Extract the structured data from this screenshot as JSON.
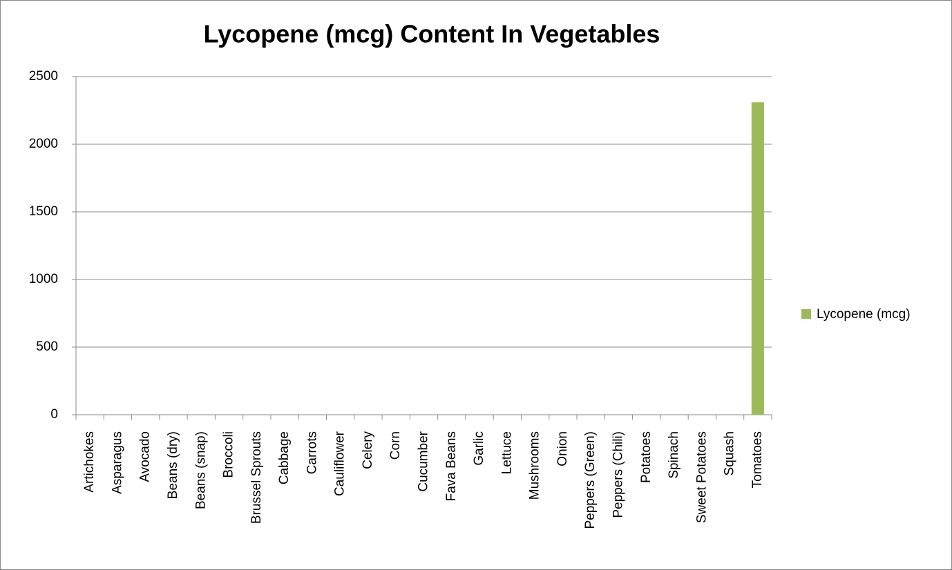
{
  "chart_data": {
    "type": "bar",
    "title": "Lycopene (mcg) Content In Vegetables",
    "categories": [
      "Artichokes",
      "Asparagus",
      "Avocado",
      "Beans (dry)",
      "Beans (snap)",
      "Broccoli",
      "Brussel Sprouts",
      "Cabbage",
      "Carrots",
      "Cauliflower",
      "Celery",
      "Corn",
      "Cucumber",
      "Fava Beans",
      "Garlic",
      "Lettuce",
      "Mushrooms",
      "Onion",
      "Peppers (Green)",
      "Peppers (Chili)",
      "Potatoes",
      "Spinach",
      "Sweet Potatoes",
      "Squash",
      "Tomatoes"
    ],
    "series": [
      {
        "name": "Lycopene (mcg)",
        "color": "#9bbb59",
        "values": [
          0,
          0,
          0,
          0,
          0,
          0,
          0,
          0,
          0,
          0,
          0,
          0,
          0,
          0,
          0,
          0,
          0,
          0,
          0,
          0,
          0,
          0,
          0,
          0,
          2310
        ]
      }
    ],
    "ylim": [
      0,
      2500
    ],
    "yticks": [
      0,
      500,
      1000,
      1500,
      2000,
      2500
    ],
    "grid": true,
    "legend": "right"
  }
}
